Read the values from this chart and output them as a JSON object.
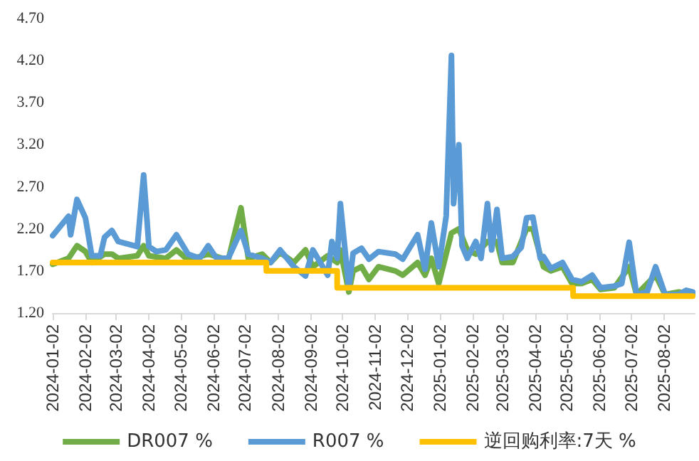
{
  "chart_data": {
    "type": "line",
    "xlim": [
      "2024-01-02",
      "2025-08-31"
    ],
    "xticks": [
      {
        "value": "2024-01-02",
        "label": "2024-01-02"
      },
      {
        "value": "2024-02-02",
        "label": "2024-02-02"
      },
      {
        "value": "2024-03-02",
        "label": "2024-03-02"
      },
      {
        "value": "2024-04-02",
        "label": "2024-04-02"
      },
      {
        "value": "2024-05-02",
        "label": "2024-05-02"
      },
      {
        "value": "2024-06-02",
        "label": "2024-06-02"
      },
      {
        "value": "2024-07-02",
        "label": "2024-07-02"
      },
      {
        "value": "2024-08-02",
        "label": "2024-08-02"
      },
      {
        "value": "2024-09-02",
        "label": "2024-09-02"
      },
      {
        "value": "2024-10-02",
        "label": "2024-10-02"
      },
      {
        "value": "2024-11-02",
        "label": "2024-11-02"
      },
      {
        "value": "2024-12-02",
        "label": "2024-12-02"
      },
      {
        "value": "2025-01-02",
        "label": "2025-01-02"
      },
      {
        "value": "2025-02-02",
        "label": "2025-02-02"
      },
      {
        "value": "2025-03-02",
        "label": "2025-03-02"
      },
      {
        "value": "2025-04-02",
        "label": "2025-04-02"
      },
      {
        "value": "2025-05-02",
        "label": "2025-05-02"
      },
      {
        "value": "2025-06-02",
        "label": "2025-06-02"
      },
      {
        "value": "2025-07-02",
        "label": "2025-07-02"
      },
      {
        "value": "2025-08-02",
        "label": "2025-08-02"
      }
    ],
    "ylim": [
      1.2,
      4.7
    ],
    "yticks": [
      {
        "value": 1.2,
        "label": "1.20"
      },
      {
        "value": 1.7,
        "label": "1.70"
      },
      {
        "value": 2.2,
        "label": "2.20"
      },
      {
        "value": 2.7,
        "label": "2.70"
      },
      {
        "value": 3.2,
        "label": "3.20"
      },
      {
        "value": 3.7,
        "label": "3.70"
      },
      {
        "value": 4.2,
        "label": "4.20"
      },
      {
        "value": 4.7,
        "label": "4.70"
      }
    ],
    "grid": false,
    "legend": "bottom",
    "marker": "none",
    "line_style": "solid",
    "series": [
      {
        "name": "DR007 %",
        "color": "#70ad47",
        "x": [
          "2024-01-02",
          "2024-01-17",
          "2024-01-25",
          "2024-02-02",
          "2024-02-08",
          "2024-02-20",
          "2024-02-27",
          "2024-03-04",
          "2024-03-22",
          "2024-03-28",
          "2024-04-02",
          "2024-04-18",
          "2024-04-28",
          "2024-05-09",
          "2024-05-28",
          "2024-06-16",
          "2024-06-28",
          "2024-07-05",
          "2024-07-18",
          "2024-07-26",
          "2024-08-04",
          "2024-08-17",
          "2024-08-28",
          "2024-09-04",
          "2024-09-18",
          "2024-09-27",
          "2024-09-30",
          "2024-10-08",
          "2024-10-12",
          "2024-10-20",
          "2024-10-27",
          "2024-11-05",
          "2024-11-21",
          "2024-11-28",
          "2024-12-12",
          "2024-12-19",
          "2024-12-25",
          "2025-01-01",
          "2025-01-13",
          "2025-01-20",
          "2025-01-28",
          "2025-02-05",
          "2025-02-16",
          "2025-02-25",
          "2025-03-02",
          "2025-03-12",
          "2025-03-25",
          "2025-03-31",
          "2025-04-10",
          "2025-04-17",
          "2025-04-28",
          "2025-05-07",
          "2025-05-16",
          "2025-05-26",
          "2025-06-03",
          "2025-06-16",
          "2025-06-30",
          "2025-07-07",
          "2025-07-25",
          "2025-08-03",
          "2025-08-16",
          "2025-08-29"
        ],
        "values": [
          1.78,
          1.85,
          2.0,
          1.93,
          1.8,
          1.9,
          1.9,
          1.85,
          1.88,
          2.0,
          1.88,
          1.85,
          1.95,
          1.83,
          1.9,
          1.83,
          2.45,
          1.85,
          1.9,
          1.8,
          1.92,
          1.8,
          1.95,
          1.75,
          1.88,
          1.8,
          1.95,
          1.45,
          1.7,
          1.75,
          1.6,
          1.75,
          1.7,
          1.65,
          1.8,
          1.65,
          1.85,
          1.55,
          2.15,
          2.2,
          1.95,
          1.9,
          2.05,
          2.05,
          1.8,
          1.8,
          2.2,
          2.2,
          1.75,
          1.7,
          1.75,
          1.55,
          1.55,
          1.6,
          1.48,
          1.5,
          1.75,
          1.42,
          1.65,
          1.42,
          1.45,
          1.42
        ]
      },
      {
        "name": "R007 %",
        "color": "#5b9bd5",
        "x": [
          "2024-01-02",
          "2024-01-17",
          "2024-01-19",
          "2024-01-25",
          "2024-02-02",
          "2024-02-08",
          "2024-02-16",
          "2024-02-20",
          "2024-02-27",
          "2024-03-04",
          "2024-03-22",
          "2024-03-28",
          "2024-04-02",
          "2024-04-09",
          "2024-04-18",
          "2024-04-28",
          "2024-05-09",
          "2024-05-20",
          "2024-05-28",
          "2024-06-05",
          "2024-06-16",
          "2024-06-28",
          "2024-07-05",
          "2024-07-18",
          "2024-07-26",
          "2024-08-04",
          "2024-08-17",
          "2024-08-28",
          "2024-09-04",
          "2024-09-18",
          "2024-09-22",
          "2024-09-27",
          "2024-09-30",
          "2024-10-08",
          "2024-10-12",
          "2024-10-20",
          "2024-10-27",
          "2024-11-05",
          "2024-11-21",
          "2024-11-28",
          "2024-12-12",
          "2024-12-19",
          "2024-12-25",
          "2025-01-01",
          "2025-01-08",
          "2025-01-13",
          "2025-01-15",
          "2025-01-20",
          "2025-01-23",
          "2025-01-28",
          "2025-02-05",
          "2025-02-10",
          "2025-02-16",
          "2025-02-20",
          "2025-02-25",
          "2025-03-02",
          "2025-03-12",
          "2025-03-20",
          "2025-03-25",
          "2025-03-31",
          "2025-04-07",
          "2025-04-10",
          "2025-04-17",
          "2025-04-28",
          "2025-05-07",
          "2025-05-16",
          "2025-05-26",
          "2025-06-03",
          "2025-06-16",
          "2025-06-23",
          "2025-06-30",
          "2025-07-07",
          "2025-07-17",
          "2025-07-25",
          "2025-08-03",
          "2025-08-16",
          "2025-08-23",
          "2025-08-29"
        ],
        "values": [
          2.12,
          2.35,
          2.13,
          2.55,
          2.33,
          1.88,
          1.88,
          2.1,
          2.18,
          2.05,
          1.99,
          2.84,
          1.99,
          1.93,
          1.95,
          2.13,
          1.9,
          1.85,
          2.0,
          1.85,
          1.85,
          2.18,
          1.9,
          1.85,
          1.8,
          1.95,
          1.75,
          1.64,
          1.95,
          1.65,
          2.05,
          1.85,
          2.5,
          1.5,
          1.91,
          1.97,
          1.84,
          1.93,
          1.9,
          1.84,
          2.13,
          1.72,
          2.27,
          1.75,
          2.35,
          4.26,
          2.5,
          3.2,
          2.0,
          1.85,
          2.05,
          1.85,
          2.5,
          1.95,
          2.43,
          1.85,
          1.87,
          1.98,
          2.33,
          2.34,
          1.85,
          1.87,
          1.73,
          1.8,
          1.6,
          1.57,
          1.65,
          1.5,
          1.52,
          1.55,
          2.04,
          1.42,
          1.45,
          1.75,
          1.42,
          1.42,
          1.47,
          1.45
        ]
      },
      {
        "name": "逆回购利率:7天 %",
        "color": "#ffc000",
        "type": "step",
        "x": [
          "2024-01-02",
          "2024-07-22",
          "2024-09-27",
          "2025-05-08",
          "2025-08-29"
        ],
        "values": [
          1.8,
          1.7,
          1.5,
          1.4,
          1.4
        ]
      }
    ]
  }
}
